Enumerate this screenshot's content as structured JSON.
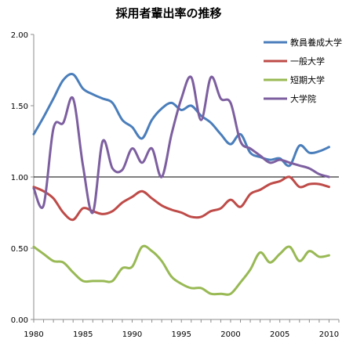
{
  "chart_data": {
    "type": "line",
    "title": "採用者輩出率の推移",
    "xlabel": "",
    "ylabel": "",
    "xlim": [
      1980,
      2011
    ],
    "ylim": [
      0,
      2.0
    ],
    "x_ticks": [
      "1980",
      "1985",
      "1990",
      "1995",
      "2000",
      "2005",
      "2010"
    ],
    "y_ticks": [
      "0.00",
      "0.50",
      "1.00",
      "1.50",
      "2.00"
    ],
    "gridlines": false,
    "reference_line": 1.0,
    "legend_position": "top-right",
    "series": [
      {
        "name": "教員養成大学",
        "color": "#4a7ebb",
        "x": [
          1980,
          1981,
          1982,
          1983,
          1984,
          1985,
          1986,
          1987,
          1988,
          1989,
          1990,
          1991,
          1992,
          1993,
          1994,
          1995,
          1996,
          1997,
          1998,
          1999,
          2000,
          2001,
          2002,
          2003,
          2004,
          2005,
          2006,
          2007,
          2008,
          2009,
          2010
        ],
        "y": [
          1.3,
          1.42,
          1.55,
          1.68,
          1.72,
          1.62,
          1.58,
          1.55,
          1.52,
          1.4,
          1.35,
          1.27,
          1.4,
          1.48,
          1.52,
          1.47,
          1.5,
          1.43,
          1.38,
          1.3,
          1.23,
          1.3,
          1.17,
          1.14,
          1.12,
          1.13,
          1.08,
          1.22,
          1.17,
          1.18,
          1.21
        ]
      },
      {
        "name": "一般大学",
        "color": "#be4b48",
        "x": [
          1980,
          1981,
          1982,
          1983,
          1984,
          1985,
          1986,
          1987,
          1988,
          1989,
          1990,
          1991,
          1992,
          1993,
          1994,
          1995,
          1996,
          1997,
          1998,
          1999,
          2000,
          2001,
          2002,
          2003,
          2004,
          2005,
          2006,
          2007,
          2008,
          2009,
          2010
        ],
        "y": [
          0.93,
          0.9,
          0.85,
          0.75,
          0.7,
          0.78,
          0.76,
          0.74,
          0.76,
          0.82,
          0.86,
          0.9,
          0.85,
          0.8,
          0.77,
          0.75,
          0.72,
          0.72,
          0.76,
          0.78,
          0.84,
          0.79,
          0.88,
          0.91,
          0.95,
          0.97,
          1.0,
          0.93,
          0.95,
          0.95,
          0.93
        ]
      },
      {
        "name": "短期大学",
        "color": "#98b954",
        "x": [
          1980,
          1981,
          1982,
          1983,
          1984,
          1985,
          1986,
          1987,
          1988,
          1989,
          1990,
          1991,
          1992,
          1993,
          1994,
          1995,
          1996,
          1997,
          1998,
          1999,
          2000,
          2001,
          2002,
          2003,
          2004,
          2005,
          2006,
          2007,
          2008,
          2009,
          2010
        ],
        "y": [
          0.51,
          0.46,
          0.41,
          0.4,
          0.33,
          0.27,
          0.27,
          0.27,
          0.27,
          0.36,
          0.37,
          0.51,
          0.48,
          0.41,
          0.3,
          0.25,
          0.22,
          0.22,
          0.18,
          0.18,
          0.18,
          0.26,
          0.35,
          0.47,
          0.4,
          0.46,
          0.51,
          0.41,
          0.48,
          0.44,
          0.45
        ]
      },
      {
        "name": "大学院",
        "color": "#7d5fa0",
        "x": [
          1980,
          1981,
          1982,
          1983,
          1984,
          1985,
          1986,
          1987,
          1988,
          1989,
          1990,
          1991,
          1992,
          1993,
          1994,
          1995,
          1996,
          1997,
          1998,
          1999,
          2000,
          2001,
          2002,
          2003,
          2004,
          2005,
          2006,
          2007,
          2008,
          2009,
          2010
        ],
        "y": [
          0.92,
          0.8,
          1.34,
          1.38,
          1.55,
          1.08,
          0.75,
          1.25,
          1.06,
          1.05,
          1.2,
          1.1,
          1.2,
          1.0,
          1.3,
          1.55,
          1.7,
          1.4,
          1.7,
          1.55,
          1.52,
          1.25,
          1.2,
          1.15,
          1.1,
          1.12,
          1.1,
          1.08,
          1.06,
          1.02,
          1.0
        ]
      }
    ]
  }
}
